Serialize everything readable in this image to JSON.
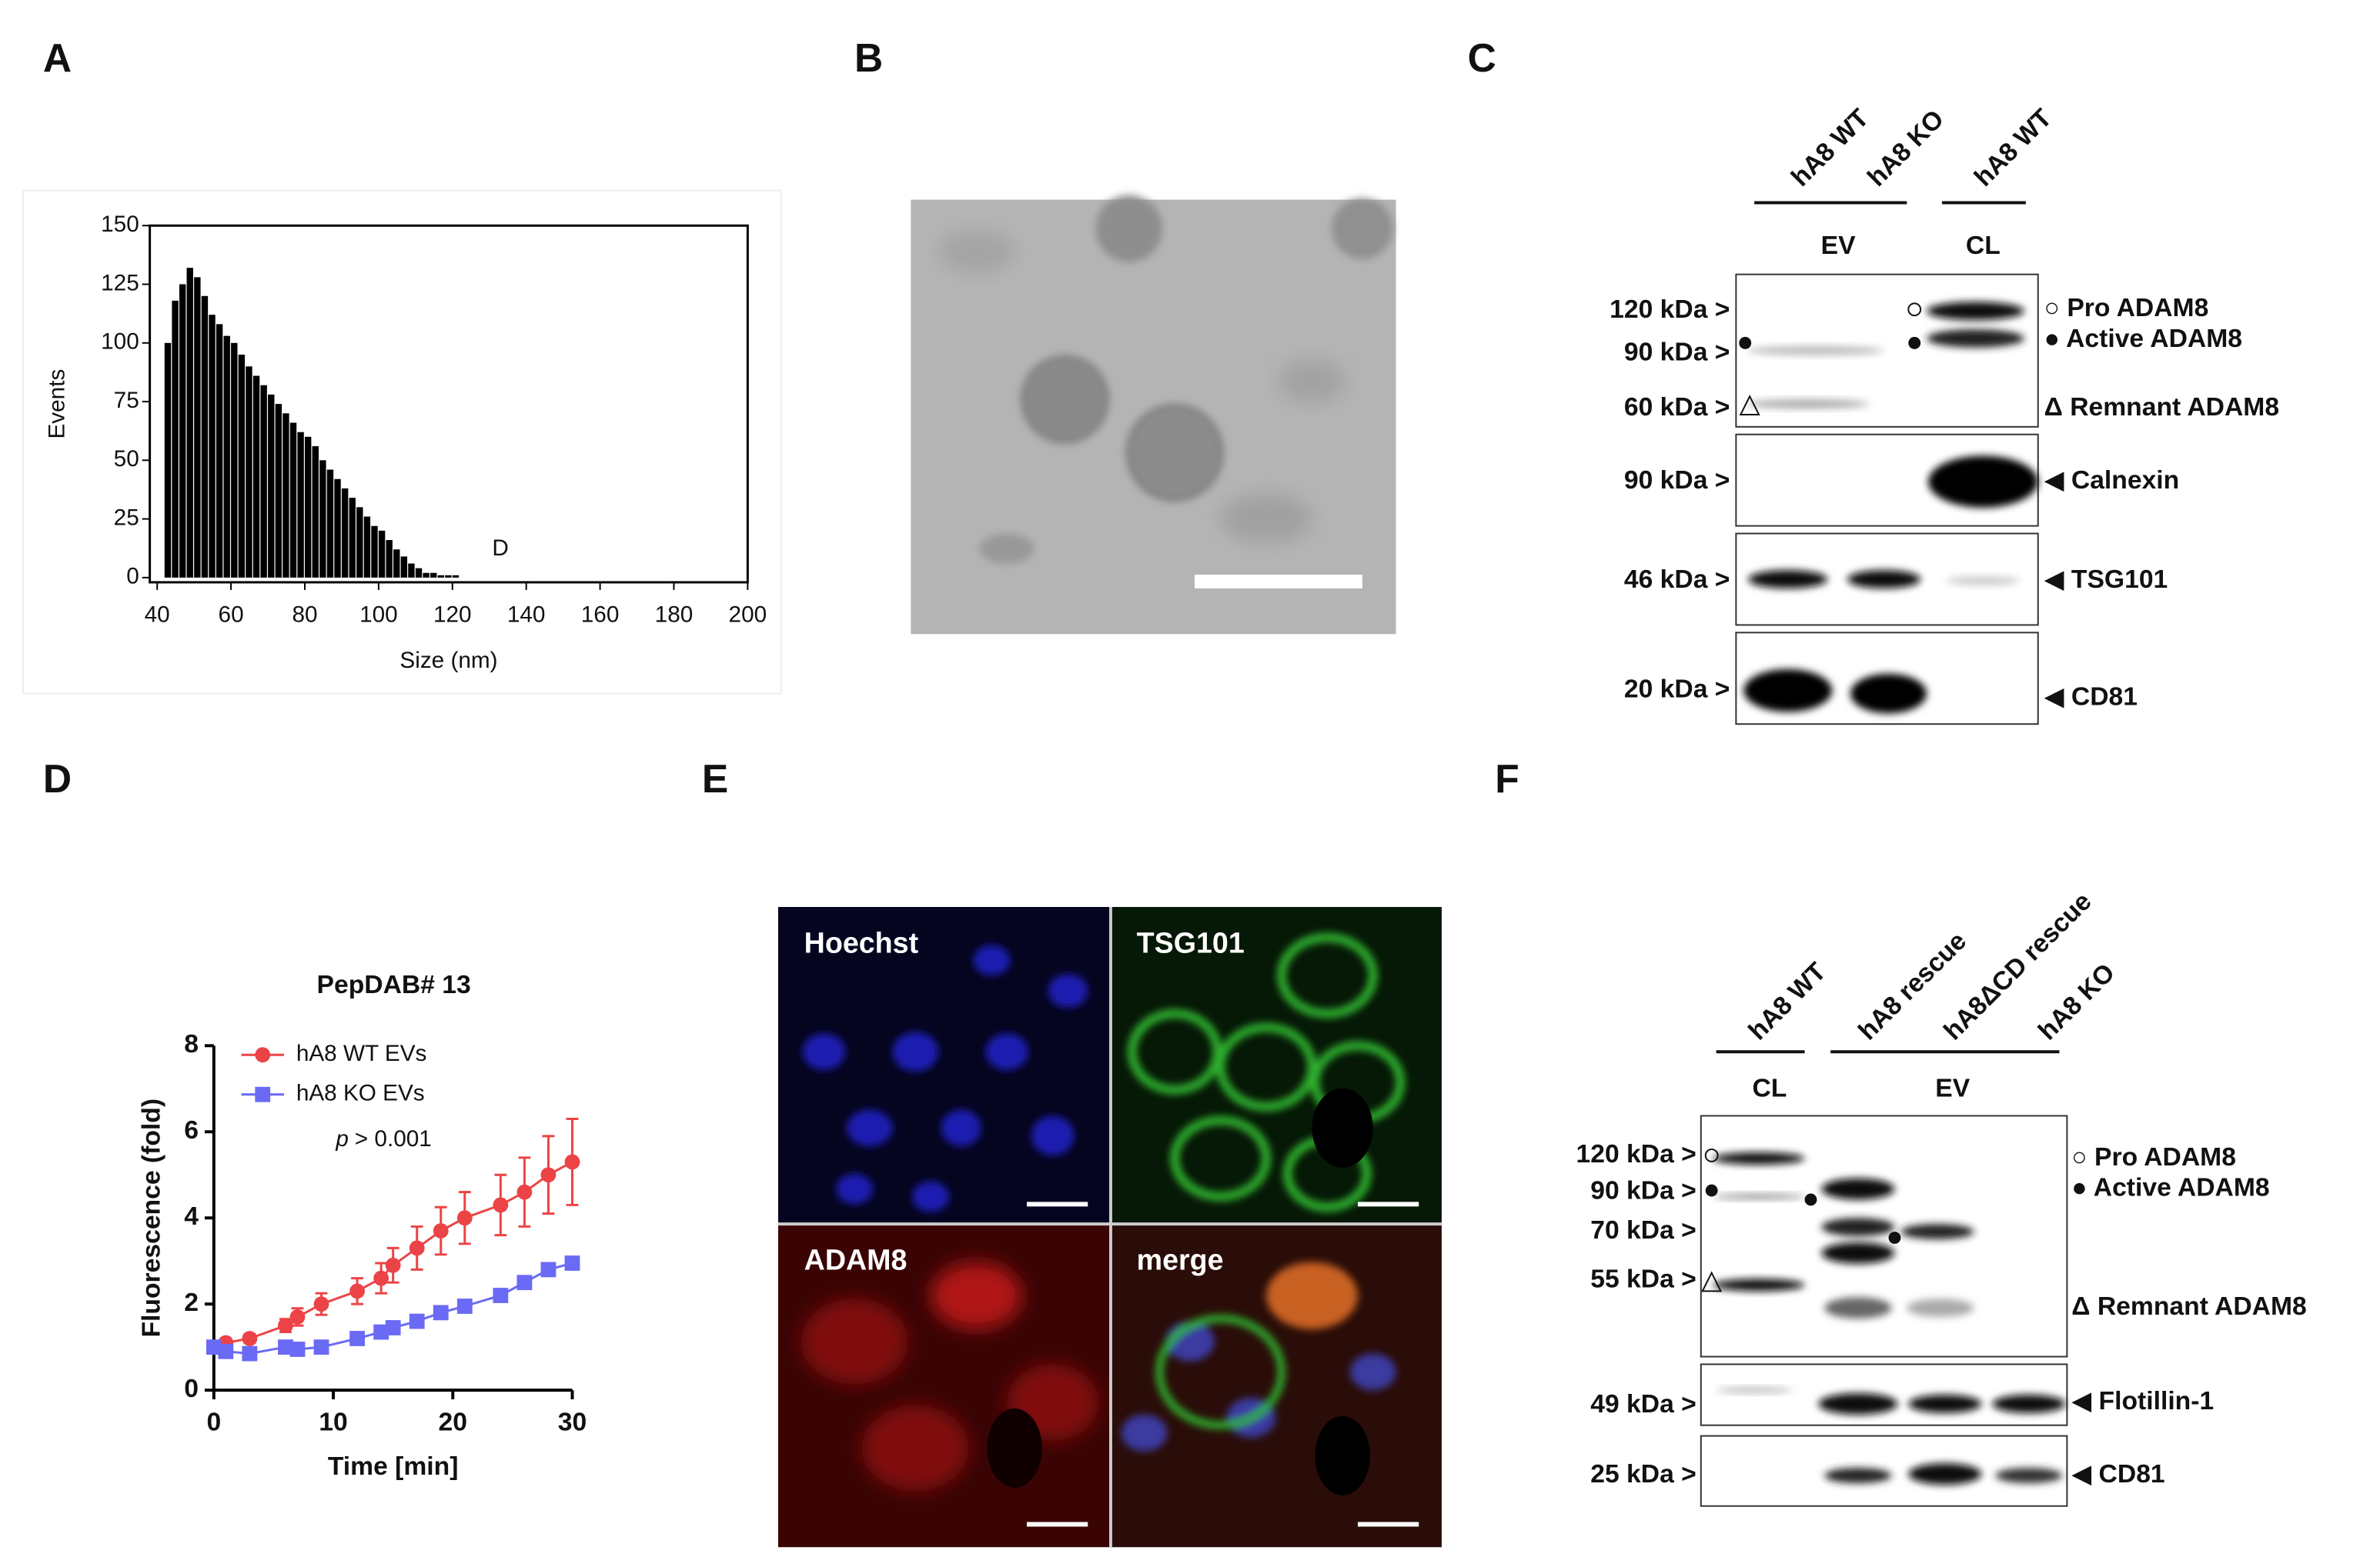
{
  "panel_labels": [
    "A",
    "B",
    "C",
    "D",
    "E",
    "F"
  ],
  "chart_data": [
    {
      "type": "histogram",
      "xlabel": "Size (nm)",
      "ylabel": "Events",
      "color": "#000000",
      "bins": [
        40,
        42,
        44,
        46,
        48,
        50,
        52,
        54,
        56,
        58,
        60,
        62,
        64,
        66,
        68,
        70,
        72,
        74,
        76,
        78,
        80,
        82,
        84,
        86,
        88,
        90,
        92,
        94,
        96,
        98,
        100,
        102,
        104,
        106,
        108,
        110,
        112,
        114,
        116,
        118,
        120,
        122,
        124,
        126,
        128,
        130,
        132,
        134,
        136,
        138,
        140,
        142,
        144,
        146,
        148,
        150,
        152,
        154,
        156,
        158,
        160,
        162,
        164,
        166,
        168,
        170,
        172,
        174,
        176,
        178,
        180,
        182,
        184,
        186,
        188,
        190,
        192,
        194,
        196,
        198,
        200
      ],
      "values": [
        0,
        100,
        118,
        125,
        132,
        128,
        120,
        112,
        108,
        103,
        100,
        95,
        90,
        86,
        82,
        78,
        74,
        70,
        66,
        62,
        60,
        56,
        50,
        46,
        42,
        38,
        34,
        30,
        26,
        22,
        20,
        16,
        12,
        9,
        6,
        4,
        2,
        2,
        1,
        1,
        1,
        0,
        0,
        0,
        0,
        0,
        0,
        0,
        0,
        0,
        0,
        0,
        0,
        0,
        0,
        0,
        0,
        0,
        0,
        0,
        0,
        0,
        0,
        0,
        0,
        0,
        0,
        0,
        0,
        0,
        0,
        0,
        0,
        0,
        0,
        0,
        0,
        0,
        0,
        0
      ],
      "xlim": [
        38,
        200
      ],
      "xticks": [
        40,
        60,
        80,
        100,
        120,
        140,
        160,
        180,
        200
      ],
      "ylim": [
        -2,
        150
      ],
      "yticks": [
        0,
        25,
        50,
        75,
        100,
        125,
        150
      ],
      "annotations": [
        {
          "text": "D",
          "x": 133,
          "y": 12
        }
      ]
    },
    {
      "type": "line",
      "title": "PepDAB# 13",
      "xlabel": "Time [min]",
      "ylabel": "Fluorescence (fold)",
      "annotation": [
        "p",
        "> 0.001"
      ],
      "x": [
        0,
        1,
        3,
        6,
        7,
        9,
        12,
        14,
        15,
        17,
        19,
        21,
        24,
        26,
        28,
        30
      ],
      "series": [
        {
          "name": "hA8 WT EVs",
          "color": "#ec4346",
          "marker": "circle",
          "values": [
            1,
            1.1,
            1.2,
            1.5,
            1.7,
            2.0,
            2.3,
            2.6,
            2.9,
            3.3,
            3.7,
            4.0,
            4.3,
            4.6,
            5.0,
            5.3
          ],
          "errors": [
            0.1,
            0.1,
            0.1,
            0.15,
            0.2,
            0.25,
            0.3,
            0.35,
            0.4,
            0.5,
            0.55,
            0.6,
            0.7,
            0.8,
            0.9,
            1.0
          ]
        },
        {
          "name": "hA8 KO EVs",
          "color": "#6a6af5",
          "marker": "square",
          "values": [
            1,
            0.9,
            0.85,
            1.0,
            0.95,
            1.0,
            1.2,
            1.35,
            1.45,
            1.6,
            1.8,
            1.95,
            2.2,
            2.5,
            2.8,
            2.95
          ],
          "errors": [
            0.1,
            0.1,
            0.1,
            0.1,
            0.1,
            0.1,
            0.1,
            0.1,
            0.1,
            0.1,
            0.1,
            0.1,
            0.1,
            0.1,
            0.1,
            0.1
          ]
        }
      ],
      "xlim": [
        0,
        30
      ],
      "xticks": [
        0,
        10,
        20,
        30
      ],
      "ylim": [
        0,
        8
      ],
      "yticks": [
        0,
        2,
        4,
        6,
        8
      ]
    }
  ],
  "panel_c": {
    "lanes": [
      "hA8 WT",
      "hA8 KO",
      "hA8 WT"
    ],
    "groups": [
      "EV",
      "CL"
    ],
    "markers": [
      "120 kDa >",
      "90 kDa >",
      "60 kDa >",
      "90 kDa >",
      "46 kDa >",
      "20 kDa >"
    ],
    "proteins": [
      "○ Pro ADAM8",
      "● Active ADAM8",
      "Δ Remnant ADAM8",
      "◀ Calnexin",
      "◀ TSG101",
      "◀ CD81"
    ]
  },
  "panel_e": {
    "channels": [
      "Hoechst",
      "TSG101",
      "ADAM8",
      "merge"
    ]
  },
  "panel_f": {
    "lanes": [
      "hA8 WT",
      "hA8 rescue",
      "hA8ΔCD rescue",
      "hA8 KO"
    ],
    "groups": [
      "CL",
      "EV"
    ],
    "markers": [
      "120 kDa >",
      "90 kDa >",
      "70 kDa >",
      "55 kDa >",
      "49 kDa >",
      "25 kDa >"
    ],
    "proteins": [
      "○ Pro ADAM8",
      "● Active ADAM8",
      "Δ Remnant ADAM8",
      "◀ Flotillin-1",
      "◀ CD81"
    ]
  }
}
